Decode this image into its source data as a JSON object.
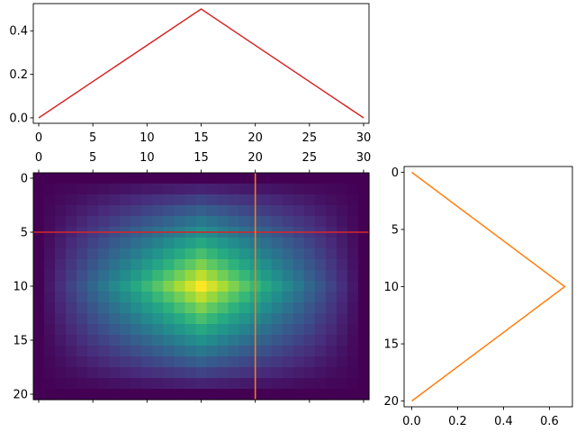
{
  "chart_data": [
    {
      "id": "top_profile",
      "type": "line",
      "title": "",
      "xlabel": "",
      "ylabel": "",
      "xlim": [
        -0.5,
        30.5
      ],
      "ylim": [
        -0.025,
        0.525
      ],
      "xticks": [
        0,
        5,
        10,
        15,
        20,
        25,
        30
      ],
      "yticks": [
        0.0,
        0.2,
        0.4
      ],
      "series": [
        {
          "color": "#d62728",
          "x": [
            0,
            15,
            30
          ],
          "y": [
            0.0,
            0.5,
            0.0
          ]
        }
      ]
    },
    {
      "id": "main_image",
      "type": "heatmap",
      "title": "",
      "colormap": "viridis",
      "shape": [
        21,
        31
      ],
      "description_of_values": "separable product of a triangle over columns (peak at col 15) and a triangle over rows (peak at row 10)",
      "row_profile": [
        0.0,
        0.1,
        0.2,
        0.3,
        0.4,
        0.5,
        0.6,
        0.7,
        0.8,
        0.9,
        1.0,
        0.9,
        0.8,
        0.7,
        0.6,
        0.5,
        0.4,
        0.3,
        0.2,
        0.1,
        0.0
      ],
      "col_profile": [
        0.0,
        0.0667,
        0.1333,
        0.2,
        0.2667,
        0.3333,
        0.4,
        0.4667,
        0.5333,
        0.6,
        0.6667,
        0.7333,
        0.8,
        0.8667,
        0.9333,
        1.0,
        0.9333,
        0.8667,
        0.8,
        0.7333,
        0.6667,
        0.6,
        0.5333,
        0.4667,
        0.4,
        0.3333,
        0.2667,
        0.2,
        0.1333,
        0.0667,
        0.0
      ],
      "xlim": [
        -0.5,
        30.5
      ],
      "ylim": [
        20.5,
        -0.5
      ],
      "xticks": [
        0,
        5,
        10,
        15,
        20,
        25,
        30
      ],
      "yticks": [
        0,
        5,
        10,
        15,
        20
      ],
      "hline": {
        "y": 5,
        "color": "#d62728"
      },
      "vline": {
        "x": 20,
        "color": "#ff7f0e"
      }
    },
    {
      "id": "right_profile",
      "type": "line",
      "title": "",
      "xlabel": "",
      "ylabel": "",
      "xlim": [
        -0.0333,
        0.7
      ],
      "ylim": [
        20.5,
        -0.5
      ],
      "xticks": [
        0.0,
        0.2,
        0.4,
        0.6
      ],
      "yticks": [
        0,
        5,
        10,
        15,
        20
      ],
      "series": [
        {
          "color": "#ff7f0e",
          "x": [
            0.0,
            0.6667,
            0.0
          ],
          "y": [
            0,
            10,
            20
          ]
        }
      ]
    }
  ],
  "tick_labels": {
    "top_y": [
      "0.0",
      "0.2",
      "0.4"
    ],
    "top_x": [
      "0",
      "5",
      "10",
      "15",
      "20",
      "25",
      "30"
    ],
    "main_top_x": [
      "0",
      "5",
      "10",
      "15",
      "20",
      "25",
      "30"
    ],
    "main_y": [
      "0",
      "5",
      "10",
      "15",
      "20"
    ],
    "right_y": [
      "0",
      "5",
      "10",
      "15",
      "20"
    ],
    "right_x": [
      "0.0",
      "0.2",
      "0.4",
      "0.6"
    ]
  }
}
